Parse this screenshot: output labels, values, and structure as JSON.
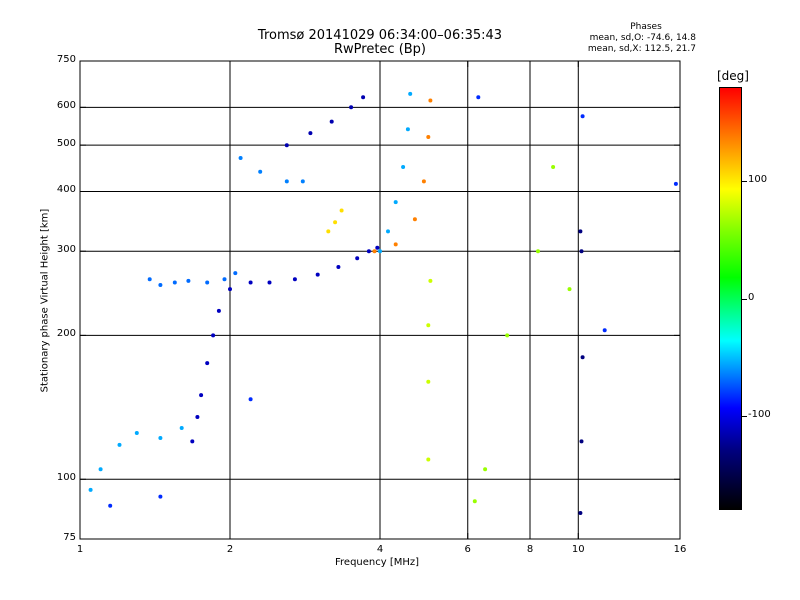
{
  "header": {
    "title_line1": "Tromsø 20141029 06:34:00–06:35:43",
    "title_line2": "RwPretec (Bp)"
  },
  "stats": {
    "heading": "Phases",
    "line_o": "mean, sd,O: -74.6, 14.8",
    "line_x": "mean, sd,X: 112.5, 21.7"
  },
  "colorbar": {
    "unit": "[deg]",
    "ticks": [
      {
        "value": 100,
        "label": "100"
      },
      {
        "value": 0,
        "label": "0"
      },
      {
        "value": -100,
        "label": "-100"
      }
    ],
    "range": [
      -180,
      180
    ]
  },
  "chart_data": {
    "type": "scatter",
    "xlabel": "Frequency [MHz]",
    "ylabel": "Stationary phase Virtual Height [km]",
    "x_scale": "log",
    "y_scale": "log",
    "xlim": [
      1,
      16
    ],
    "ylim": [
      75,
      750
    ],
    "x_ticks": [
      1,
      2,
      4,
      6,
      8,
      10,
      16
    ],
    "x_tick_labels": [
      "1",
      "2",
      "4",
      "6",
      "8",
      "10",
      "16"
    ],
    "y_ticks": [
      75,
      100,
      200,
      300,
      400,
      500,
      600,
      750
    ],
    "y_tick_labels": [
      "75",
      "100",
      "200",
      "300",
      "400",
      "500",
      "600",
      "750"
    ],
    "grid": true,
    "grid_x": [
      2,
      4,
      6,
      8,
      10
    ],
    "grid_y": [
      100,
      200,
      300,
      400,
      500,
      600
    ],
    "color_by": "phase",
    "traces": [
      {
        "x": [
          1.68,
          1.72,
          1.75,
          1.8,
          1.85,
          1.9,
          2.0,
          2.2,
          2.4,
          2.7,
          3.0,
          3.3,
          3.6,
          3.8,
          3.95
        ],
        "y": [
          120,
          135,
          150,
          175,
          200,
          225,
          250,
          258,
          258,
          262,
          268,
          278,
          290,
          300,
          305
        ],
        "phase": -120
      },
      {
        "x": [
          2.6,
          2.9,
          3.2,
          3.5,
          3.7
        ],
        "y": [
          500,
          530,
          560,
          600,
          630
        ],
        "phase": -125
      },
      {
        "x": [
          4.0,
          4.15,
          4.3,
          4.45,
          4.55,
          4.6
        ],
        "y": [
          300,
          330,
          380,
          450,
          540,
          640
        ],
        "phase": -60
      },
      {
        "x": [
          3.9,
          4.3,
          4.7,
          4.9,
          5.0,
          5.05
        ],
        "y": [
          300,
          310,
          350,
          420,
          520,
          620
        ],
        "phase": 140
      },
      {
        "x": [
          1.05,
          1.1,
          1.2,
          1.3,
          1.45,
          1.6
        ],
        "y": [
          95,
          105,
          118,
          125,
          122,
          128
        ],
        "phase": -60
      },
      {
        "x": [
          1.38,
          1.45,
          1.55,
          1.65,
          1.8,
          1.95,
          2.05
        ],
        "y": [
          262,
          255,
          258,
          260,
          258,
          262,
          270
        ],
        "phase": -75
      },
      {
        "x": [
          2.1,
          2.3,
          2.6,
          2.8
        ],
        "y": [
          470,
          440,
          420,
          420
        ],
        "phase": -70
      },
      {
        "x": [
          3.15,
          3.25,
          3.35
        ],
        "y": [
          330,
          345,
          365
        ],
        "phase": 110
      },
      {
        "x": [
          5.0,
          5.0,
          5.0,
          5.05
        ],
        "y": [
          110,
          160,
          210,
          260
        ],
        "phase": 80
      },
      {
        "x": [
          6.2,
          6.5,
          7.2,
          8.3,
          8.9,
          9.6
        ],
        "y": [
          90,
          105,
          200,
          300,
          450,
          250
        ],
        "phase": 60
      },
      {
        "x": [
          10.1,
          10.15,
          10.2,
          10.15,
          10.1
        ],
        "y": [
          85,
          120,
          180,
          300,
          330
        ],
        "phase": -140
      },
      {
        "x": [
          1.15,
          1.45,
          2.2,
          6.3,
          10.2,
          11.3,
          15.7
        ],
        "y": [
          88,
          92,
          147,
          630,
          575,
          205,
          415
        ],
        "phase": -90
      }
    ]
  }
}
